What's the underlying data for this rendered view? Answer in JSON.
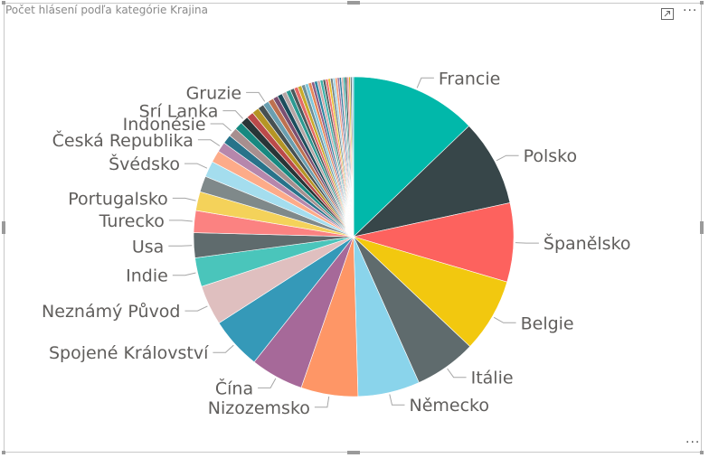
{
  "visual": {
    "title": "Počet hlásení podľa kategórie Krajina",
    "focus_icon": "focus-mode-icon",
    "more_icon": "more-options-icon",
    "more_label": "···"
  },
  "chart_data": {
    "type": "pie",
    "title": "Počet hlásení podľa kategórie Krajina",
    "legend": "none",
    "labels_outside": true,
    "slices": [
      {
        "label": "Francie",
        "value": 12.7,
        "color": "#01b8aa"
      },
      {
        "label": "Polsko",
        "value": 8.7,
        "color": "#374649"
      },
      {
        "label": "Španělsko",
        "value": 7.9,
        "color": "#fd625e"
      },
      {
        "label": "Belgie",
        "value": 7.4,
        "color": "#f2c80f"
      },
      {
        "label": "Itálie",
        "value": 6.2,
        "color": "#5f6b6d"
      },
      {
        "label": "Německo",
        "value": 6.2,
        "color": "#8ad4eb"
      },
      {
        "label": "Nizozemsko",
        "value": 5.7,
        "color": "#fe9666"
      },
      {
        "label": "Čína",
        "value": 5.3,
        "color": "#a66999"
      },
      {
        "label": "Spojené Království",
        "value": 5.2,
        "color": "#3599b8"
      },
      {
        "label": "Neznámý Původ",
        "value": 4.0,
        "color": "#dfbfbf"
      },
      {
        "label": "Indie",
        "value": 2.9,
        "color": "#4ac5bb"
      },
      {
        "label": "Usa",
        "value": 2.5,
        "color": "#5f6b6d"
      },
      {
        "label": "Turecko",
        "value": 2.2,
        "color": "#fb8281"
      },
      {
        "label": "Portugalsko",
        "value": 1.9,
        "color": "#f4d25a"
      },
      {
        "label": "",
        "value": 1.6,
        "color": "#7f898a"
      },
      {
        "label": "Švédsko",
        "value": 1.6,
        "color": "#a4ddee"
      },
      {
        "label": "",
        "value": 1.2,
        "color": "#fdab89"
      },
      {
        "label": "Česká Republika",
        "value": 1.0,
        "color": "#b687ac"
      },
      {
        "label": "",
        "value": 0.9,
        "color": "#28738a"
      },
      {
        "label": "Indonésie",
        "value": 0.9,
        "color": "#a78f8f"
      },
      {
        "label": "",
        "value": 0.8,
        "color": "#168980"
      },
      {
        "label": "Srí Lanka",
        "value": 0.8,
        "color": "#293537"
      },
      {
        "label": "",
        "value": 0.7,
        "color": "#bb4a4a"
      },
      {
        "label": "",
        "value": 0.7,
        "color": "#b59525"
      },
      {
        "label": "",
        "value": 0.6,
        "color": "#475052"
      },
      {
        "label": "Gruzie",
        "value": 0.6,
        "color": "#6a9fb0"
      },
      {
        "label": "",
        "value": 0.55,
        "color": "#bd7150"
      },
      {
        "label": "",
        "value": 0.5,
        "color": "#7b4f71"
      },
      {
        "label": "",
        "value": 0.5,
        "color": "#1b4d5c"
      },
      {
        "label": "",
        "value": 0.45,
        "color": "#b6a4a4"
      },
      {
        "label": "",
        "value": 0.45,
        "color": "#2c9a92"
      },
      {
        "label": "",
        "value": 0.4,
        "color": "#4a5a5c"
      },
      {
        "label": "",
        "value": 0.4,
        "color": "#e46a66"
      },
      {
        "label": "",
        "value": 0.38,
        "color": "#c9ab2a"
      },
      {
        "label": "",
        "value": 0.36,
        "color": "#6f8e96"
      },
      {
        "label": "",
        "value": 0.34,
        "color": "#80c7db"
      },
      {
        "label": "",
        "value": 0.32,
        "color": "#e68858"
      },
      {
        "label": "",
        "value": 0.3,
        "color": "#8e5d86"
      },
      {
        "label": "",
        "value": 0.3,
        "color": "#2e86a2"
      },
      {
        "label": "",
        "value": 0.28,
        "color": "#cfa9a9"
      },
      {
        "label": "",
        "value": 0.28,
        "color": "#3cb1a8"
      },
      {
        "label": "",
        "value": 0.26,
        "color": "#555f61"
      },
      {
        "label": "",
        "value": 0.26,
        "color": "#f07370"
      },
      {
        "label": "",
        "value": 0.24,
        "color": "#e8c130"
      },
      {
        "label": "",
        "value": 0.24,
        "color": "#738284"
      },
      {
        "label": "",
        "value": 0.22,
        "color": "#9bd2e6"
      },
      {
        "label": "",
        "value": 0.22,
        "color": "#f59e76"
      },
      {
        "label": "",
        "value": 0.2,
        "color": "#9c74a0"
      },
      {
        "label": "",
        "value": 0.2,
        "color": "#2f7fa0"
      },
      {
        "label": "",
        "value": 0.2,
        "color": "#d4b2b2"
      },
      {
        "label": "",
        "value": 0.18,
        "color": "#1a9f96"
      },
      {
        "label": "",
        "value": 0.18,
        "color": "#3c4a4c"
      },
      {
        "label": "",
        "value": 0.18,
        "color": "#f58b88"
      },
      {
        "label": "",
        "value": 0.16,
        "color": "#d8b722"
      },
      {
        "label": "",
        "value": 0.16,
        "color": "#66767a"
      },
      {
        "label": "",
        "value": 0.16,
        "color": "#92cbe0"
      }
    ]
  }
}
